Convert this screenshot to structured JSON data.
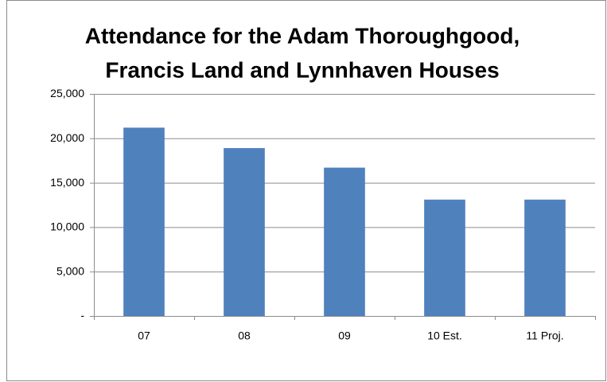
{
  "chart_data": {
    "type": "bar",
    "title": [
      "Attendance for the Adam Thoroughgood,",
      "Francis Land and Lynnhaven Houses"
    ],
    "categories": [
      "07",
      "08",
      "09",
      "10 Est.",
      "11 Proj."
    ],
    "values": [
      21200,
      18900,
      16700,
      13100,
      13100
    ],
    "color": "#4f81bd",
    "ylim": [
      0,
      25000
    ],
    "yticks": [
      {
        "value": 0,
        "label": "-"
      },
      {
        "value": 5000,
        "label": "5,000"
      },
      {
        "value": 10000,
        "label": "10,000"
      },
      {
        "value": 15000,
        "label": "15,000"
      },
      {
        "value": 20000,
        "label": "20,000"
      },
      {
        "value": 25000,
        "label": "25,000"
      }
    ],
    "grid": true
  }
}
